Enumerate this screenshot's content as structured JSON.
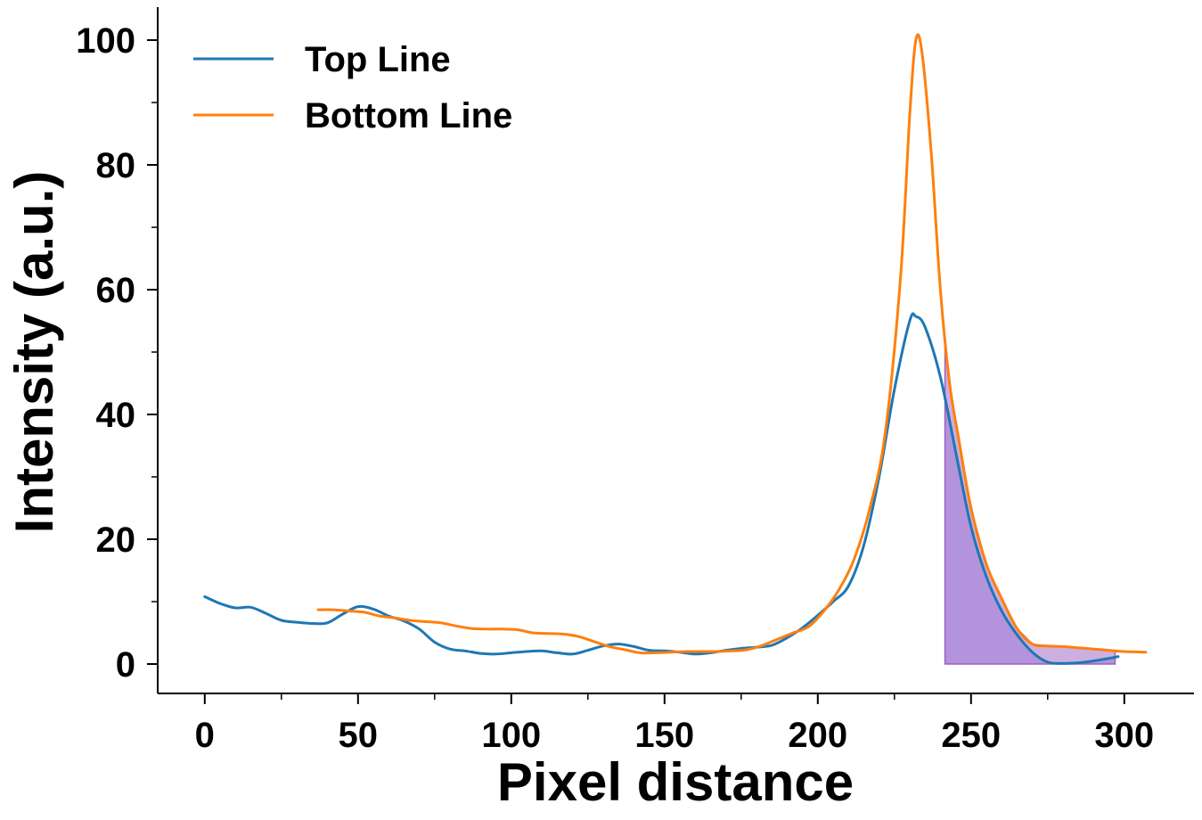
{
  "chart_data": {
    "type": "line",
    "xlabel": "Pixel distance",
    "ylabel": "Intensity (a.u.)",
    "xlim": [
      -15,
      322
    ],
    "ylim": [
      -5,
      105
    ],
    "xticks": [
      0,
      50,
      100,
      150,
      200,
      250,
      300
    ],
    "xtick_labels": [
      "0",
      "50",
      "100",
      "150",
      "200",
      "250",
      "300"
    ],
    "yticks": [
      0,
      20,
      40,
      60,
      80,
      100
    ],
    "ytick_labels": [
      "0",
      "20",
      "40",
      "60",
      "80",
      "100"
    ],
    "grid": false,
    "legend_position": "top-left",
    "series": [
      {
        "name": "Top Line",
        "color": "#1f77b4",
        "x": [
          0,
          5,
          10,
          15,
          20,
          25,
          30,
          35,
          40,
          45,
          50,
          55,
          60,
          65,
          70,
          75,
          80,
          85,
          90,
          95,
          100,
          105,
          110,
          115,
          120,
          125,
          130,
          135,
          140,
          145,
          150,
          155,
          160,
          165,
          170,
          175,
          180,
          185,
          190,
          195,
          200,
          205,
          210,
          215,
          220,
          225,
          230,
          232,
          235,
          240,
          245,
          250,
          255,
          260,
          265,
          270,
          275,
          280,
          285,
          290,
          295,
          298
        ],
        "y": [
          10.8,
          9.7,
          9.0,
          9.1,
          8.1,
          7.0,
          6.7,
          6.5,
          6.6,
          8.0,
          9.2,
          8.8,
          7.7,
          6.9,
          5.6,
          3.5,
          2.4,
          2.1,
          1.7,
          1.6,
          1.8,
          2.0,
          2.1,
          1.8,
          1.6,
          2.2,
          2.9,
          3.2,
          2.8,
          2.2,
          2.1,
          1.9,
          1.6,
          1.8,
          2.2,
          2.5,
          2.7,
          3.0,
          4.2,
          5.8,
          7.8,
          10.0,
          12.5,
          19.0,
          30.0,
          44.0,
          55.0,
          55.7,
          54.0,
          46.0,
          34.0,
          22.0,
          14.0,
          8.5,
          4.7,
          1.9,
          0.3,
          0.1,
          0.2,
          0.5,
          0.9,
          1.2
        ]
      },
      {
        "name": "Bottom Line",
        "color": "#ff7f0e",
        "x": [
          37,
          42,
          47,
          52,
          57,
          62,
          67,
          72,
          77,
          82,
          87,
          92,
          97,
          102,
          107,
          112,
          117,
          122,
          127,
          132,
          137,
          142,
          147,
          152,
          157,
          162,
          167,
          172,
          177,
          182,
          187,
          192,
          197,
          202,
          207,
          212,
          217,
          222,
          227,
          230,
          232,
          234,
          237,
          240,
          243,
          246,
          250,
          255,
          260,
          265,
          270,
          275,
          280,
          285,
          290,
          295,
          300,
          307
        ],
        "y": [
          8.7,
          8.7,
          8.5,
          8.3,
          7.7,
          7.4,
          7.0,
          6.8,
          6.6,
          6.1,
          5.7,
          5.6,
          5.6,
          5.5,
          5.0,
          4.9,
          4.8,
          4.4,
          3.6,
          2.8,
          2.3,
          1.8,
          1.8,
          1.9,
          2.0,
          2.0,
          2.0,
          2.1,
          2.3,
          3.0,
          4.0,
          5.0,
          6.0,
          8.5,
          12.0,
          17.0,
          25.0,
          37.0,
          62.0,
          88.0,
          100.0,
          98.0,
          82.0,
          60.0,
          45.0,
          36.0,
          25.0,
          16.0,
          10.5,
          5.7,
          3.2,
          2.9,
          2.8,
          2.6,
          2.4,
          2.2,
          2.0,
          1.9
        ]
      }
    ],
    "shaded_region": {
      "x_start": 241.5,
      "x_end": 297,
      "fill_color": "#9b5fc0",
      "fill_opacity": 0.5
    }
  }
}
